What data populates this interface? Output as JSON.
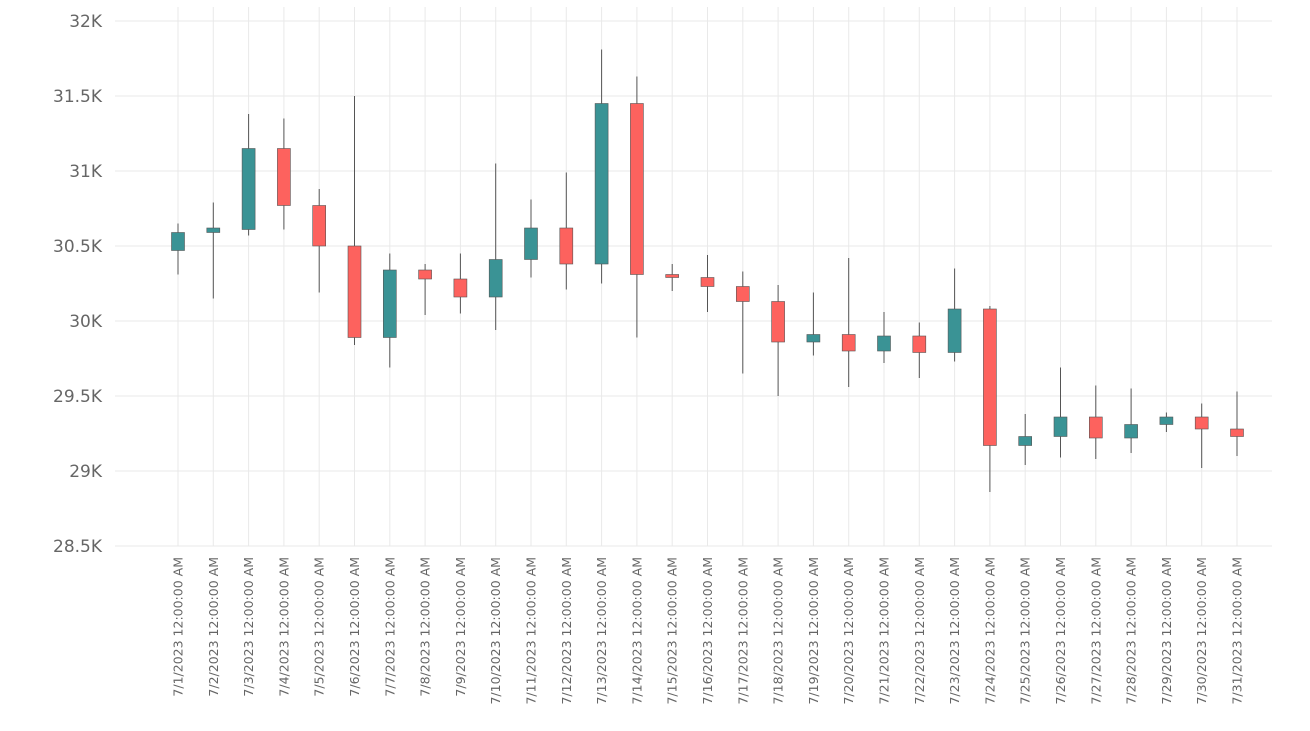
{
  "chart_data": {
    "type": "candlestick",
    "title": "",
    "xlabel": "",
    "ylabel": "",
    "ylim": [
      28500,
      32000
    ],
    "y_ticks": [
      32000,
      31500,
      31000,
      30500,
      30000,
      29500,
      29000,
      28500
    ],
    "y_tick_labels": [
      "32K",
      "31.5K",
      "31K",
      "30.5K",
      "30K",
      "29.5K",
      "29K",
      "28.5K"
    ],
    "grid": true,
    "colors": {
      "up": "#3a9395",
      "down": "#fd625e",
      "wick": "#555555",
      "grid": "#e9e9e9",
      "tick_text": "#666666"
    },
    "categories": [
      "7/1/2023 12:00:00 AM",
      "7/2/2023 12:00:00 AM",
      "7/3/2023 12:00:00 AM",
      "7/4/2023 12:00:00 AM",
      "7/5/2023 12:00:00 AM",
      "7/6/2023 12:00:00 AM",
      "7/7/2023 12:00:00 AM",
      "7/8/2023 12:00:00 AM",
      "7/9/2023 12:00:00 AM",
      "7/10/2023 12:00:00 AM",
      "7/11/2023 12:00:00 AM",
      "7/12/2023 12:00:00 AM",
      "7/13/2023 12:00:00 AM",
      "7/14/2023 12:00:00 AM",
      "7/15/2023 12:00:00 AM",
      "7/16/2023 12:00:00 AM",
      "7/17/2023 12:00:00 AM",
      "7/18/2023 12:00:00 AM",
      "7/19/2023 12:00:00 AM",
      "7/20/2023 12:00:00 AM",
      "7/21/2023 12:00:00 AM",
      "7/22/2023 12:00:00 AM",
      "7/23/2023 12:00:00 AM",
      "7/24/2023 12:00:00 AM",
      "7/25/2023 12:00:00 AM",
      "7/26/2023 12:00:00 AM",
      "7/27/2023 12:00:00 AM",
      "7/28/2023 12:00:00 AM",
      "7/29/2023 12:00:00 AM",
      "7/30/2023 12:00:00 AM",
      "7/31/2023 12:00:00 AM"
    ],
    "open": [
      30470,
      30590,
      30610,
      31150,
      30770,
      30500,
      29890,
      30340,
      30280,
      30160,
      30410,
      30620,
      30380,
      31450,
      30310,
      30290,
      30230,
      30130,
      29860,
      29910,
      29800,
      29900,
      29790,
      30080,
      29170,
      29230,
      29360,
      29220,
      29310,
      29360,
      29280
    ],
    "high": [
      30650,
      30790,
      31380,
      31350,
      30880,
      31500,
      30450,
      30380,
      30450,
      31050,
      30810,
      30990,
      31810,
      31630,
      30380,
      30440,
      30330,
      30240,
      30190,
      30420,
      30060,
      29990,
      30350,
      30100,
      29380,
      29690,
      29570,
      29550,
      29390,
      29450,
      29530
    ],
    "low": [
      30310,
      30150,
      30570,
      30610,
      30190,
      29840,
      29690,
      30040,
      30050,
      29940,
      30290,
      30210,
      30250,
      29890,
      30200,
      30060,
      29650,
      29500,
      29770,
      29560,
      29720,
      29620,
      29730,
      28860,
      29040,
      29090,
      29080,
      29120,
      29260,
      29020,
      29100
    ],
    "close": [
      30590,
      30620,
      31150,
      30770,
      30500,
      29890,
      30340,
      30280,
      30160,
      30410,
      30620,
      30380,
      31450,
      30310,
      30290,
      30230,
      30130,
      29860,
      29910,
      29800,
      29900,
      29790,
      30080,
      29170,
      29230,
      29360,
      29220,
      29310,
      29360,
      29280,
      29230
    ]
  }
}
